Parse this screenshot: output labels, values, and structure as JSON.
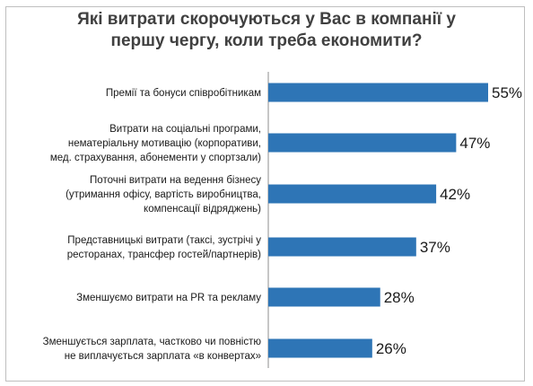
{
  "chart_data": {
    "type": "bar",
    "orientation": "horizontal",
    "title_lines": [
      "Які витрати скорочуються у Вас в компанії у",
      "першу чергу, коли треба економити?"
    ],
    "categories": [
      [
        "Премії та бонуси співробітникам"
      ],
      [
        "Витрати на соціальні програми,",
        "нематеріальну мотивацію (корпоративи,",
        "мед. страхування, абонементи у спортзали)"
      ],
      [
        "Поточні витрати на ведення бізнесу",
        "(утримання офісу, вартість виробництва,",
        "компенсації відряджень)"
      ],
      [
        "Представницькі витрати (таксі, зустрічі у",
        "ресторанах, трансфер гостей/партнерів)"
      ],
      [
        "Зменшуємо витрати на PR та рекламу"
      ],
      [
        "Зменшується зарплата, частково чи повністю",
        "не виплачується зарплата «в конвертах»"
      ]
    ],
    "values": [
      55,
      47,
      42,
      37,
      28,
      26
    ],
    "value_labels": [
      "55%",
      "47%",
      "42%",
      "37%",
      "28%",
      "26%"
    ],
    "bar_color": "#2e75b6",
    "xlim": [
      0,
      55
    ],
    "grid": false,
    "legend": "none"
  }
}
